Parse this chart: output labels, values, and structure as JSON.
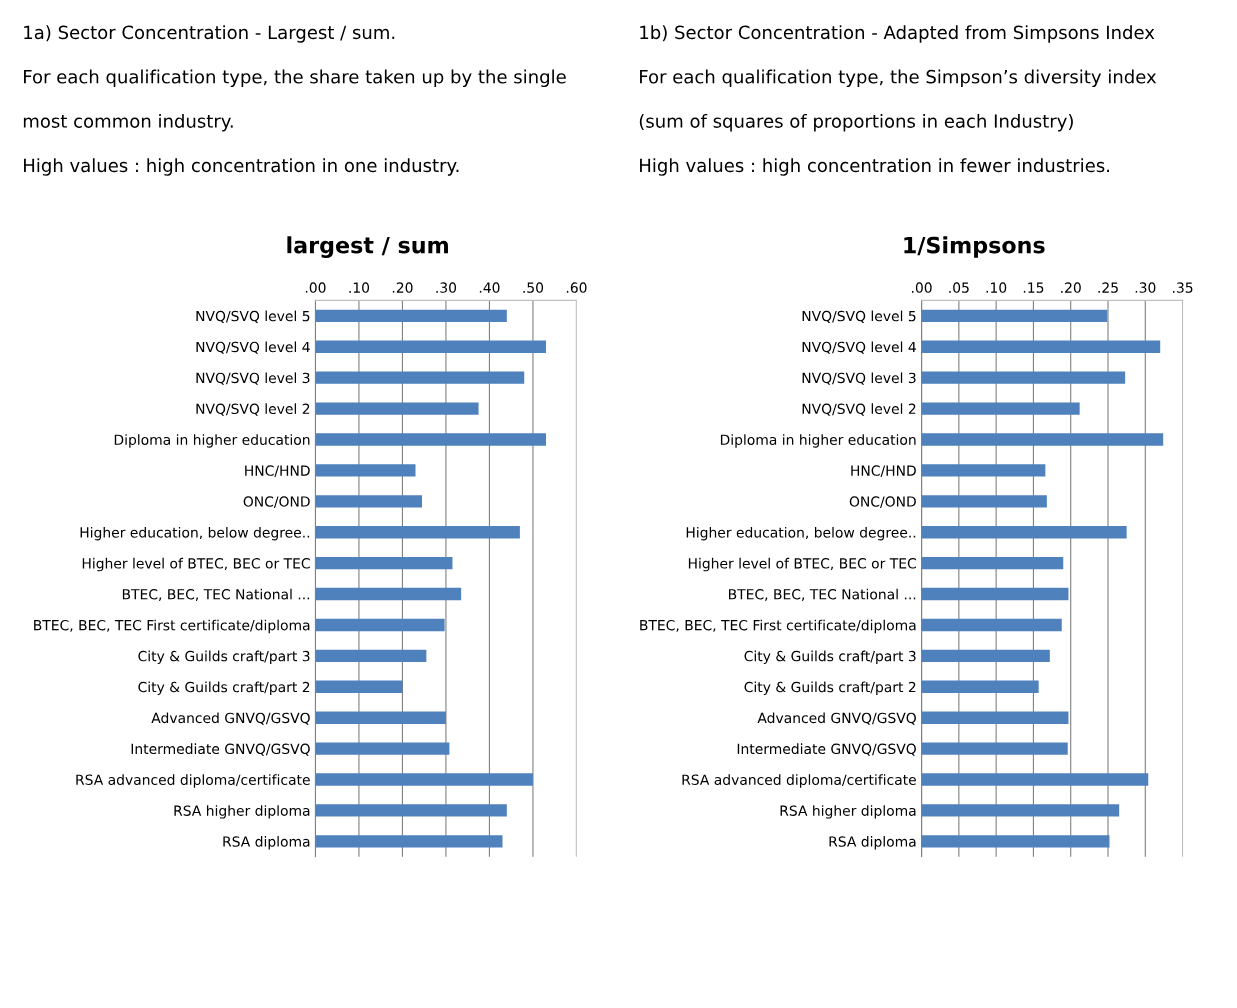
{
  "chart_data": [
    {
      "type": "bar",
      "orientation": "horizontal",
      "title": "largest / sum",
      "annotations": [
        "1a) Sector Concentration - Largest / sum.",
        "For each qualification type, the share taken up by the single",
        "most common industry.",
        "High values : high concentration in one industry."
      ],
      "categories": [
        "NVQ/SVQ level 5",
        "NVQ/SVQ level 4",
        "NVQ/SVQ level 3",
        "NVQ/SVQ level 2",
        "Diploma in higher education",
        "HNC/HND",
        "ONC/OND",
        "Higher education, below degree..",
        "Higher level of BTEC, BEC or TEC",
        "BTEC, BEC, TEC National ...",
        "BTEC, BEC, TEC First certificate/diploma",
        "City & Guilds craft/part 3",
        "City & Guilds craft/part 2",
        "Advanced GNVQ/GSVQ",
        "Intermediate GNVQ/GSVQ",
        "RSA advanced diploma/certificate",
        "RSA higher diploma",
        "RSA diploma"
      ],
      "values": [
        0.44,
        0.53,
        0.48,
        0.375,
        0.53,
        0.23,
        0.245,
        0.47,
        0.315,
        0.335,
        0.297,
        0.255,
        0.2,
        0.3,
        0.308,
        0.5,
        0.44,
        0.43
      ],
      "color": "#4f81bd",
      "xlim": [
        0,
        0.6
      ],
      "xticks": [
        {
          "value": 0,
          "label": ".00"
        },
        {
          "value": 0.1,
          "label": ".10"
        },
        {
          "value": 0.2,
          "label": ".20"
        },
        {
          "value": 0.3,
          "label": ".30"
        },
        {
          "value": 0.4,
          "label": ".40"
        },
        {
          "value": 0.5,
          "label": ".50"
        },
        {
          "value": 0.6,
          "label": ".60"
        }
      ],
      "grid": "x"
    },
    {
      "type": "bar",
      "orientation": "horizontal",
      "title": "1/Simpsons",
      "annotations": [
        "1b) Sector Concentration - Adapted from Simpsons Index",
        "For each qualification type, the Simpson’s diversity index",
        "(sum of squares of proportions in each Industry)",
        "High values : high concentration in fewer industries."
      ],
      "categories": [
        "NVQ/SVQ level 5",
        "NVQ/SVQ level 4",
        "NVQ/SVQ level 3",
        "NVQ/SVQ level 2",
        "Diploma in higher education",
        "HNC/HND",
        "ONC/OND",
        "Higher education, below degree..",
        "Higher level of BTEC, BEC or TEC",
        "BTEC, BEC, TEC National ...",
        "BTEC, BEC, TEC First certificate/diploma",
        "City & Guilds craft/part 3",
        "City & Guilds craft/part 2",
        "Advanced GNVQ/GSVQ",
        "Intermediate GNVQ/GSVQ",
        "RSA advanced diploma/certificate",
        "RSA higher diploma",
        "RSA diploma"
      ],
      "values": [
        0.249,
        0.32,
        0.273,
        0.212,
        0.324,
        0.166,
        0.168,
        0.275,
        0.19,
        0.197,
        0.188,
        0.172,
        0.157,
        0.197,
        0.196,
        0.304,
        0.265,
        0.252
      ],
      "color": "#4f81bd",
      "xlim": [
        0,
        0.35
      ],
      "xticks": [
        {
          "value": 0,
          "label": ".00"
        },
        {
          "value": 0.05,
          "label": ".05"
        },
        {
          "value": 0.1,
          "label": ".10"
        },
        {
          "value": 0.15,
          "label": ".15"
        },
        {
          "value": 0.2,
          "label": ".20"
        },
        {
          "value": 0.25,
          "label": ".25"
        },
        {
          "value": 0.3,
          "label": ".30"
        },
        {
          "value": 0.35,
          "label": ".35"
        }
      ],
      "grid": "x"
    }
  ]
}
